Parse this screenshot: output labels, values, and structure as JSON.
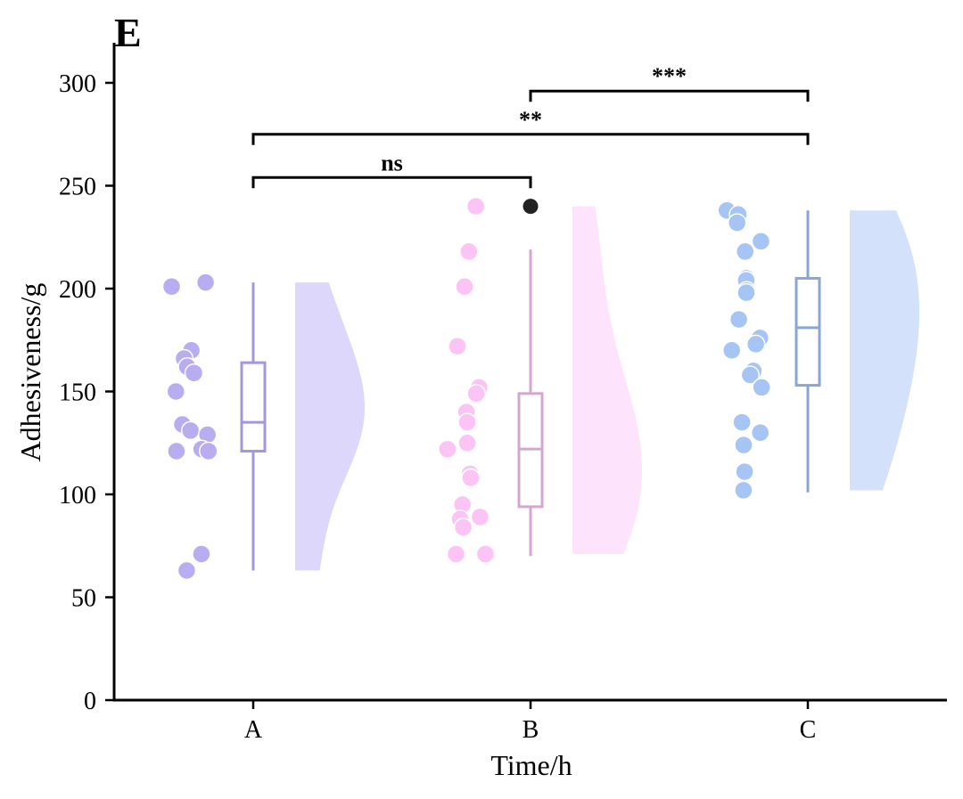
{
  "panel_label": "E",
  "chart_data": {
    "type": "raincloud",
    "xlabel": "Time/h",
    "ylabel": "Adhesiveness/g",
    "ylim": [
      0,
      320
    ],
    "yticks": [
      0,
      50,
      100,
      150,
      200,
      250,
      300
    ],
    "categories": [
      "A",
      "B",
      "C"
    ],
    "groups": [
      {
        "name": "A",
        "color": "#b9adf2",
        "box_color": "#a597d9",
        "violin_color": "#dcd7fb",
        "points": [
          203,
          201,
          170,
          166,
          162,
          159,
          150,
          134,
          131,
          129,
          122,
          121,
          121,
          71,
          63
        ],
        "box": {
          "whisker_low": 63,
          "q1": 121,
          "median": 135,
          "q3": 164,
          "whisker_high": 203
        },
        "outliers": []
      },
      {
        "name": "B",
        "color": "#fbc4f4",
        "box_color": "#d6a6d2",
        "violin_color": "#fde3fb",
        "points": [
          240,
          218,
          201,
          172,
          152,
          149,
          140,
          135,
          125,
          122,
          110,
          108,
          95,
          89,
          88,
          84,
          71,
          71
        ],
        "box": {
          "whisker_low": 70,
          "q1": 94,
          "median": 122,
          "q3": 149,
          "whisker_high": 219
        },
        "outliers": [
          240
        ]
      },
      {
        "name": "C",
        "color": "#a6c4f4",
        "box_color": "#8aa6d4",
        "violin_color": "#d3e1fb",
        "points": [
          238,
          236,
          232,
          223,
          218,
          205,
          204,
          199,
          198,
          185,
          176,
          173,
          170,
          160,
          158,
          152,
          135,
          130,
          124,
          111,
          102
        ],
        "box": {
          "whisker_low": 101,
          "q1": 153,
          "median": 181,
          "q3": 205,
          "whisker_high": 238
        },
        "outliers": []
      }
    ],
    "significance": [
      {
        "from": "A",
        "to": "B",
        "label": "ns",
        "y": 254
      },
      {
        "from": "A",
        "to": "C",
        "label": "**",
        "y": 275
      },
      {
        "from": "B",
        "to": "C",
        "label": "***",
        "y": 296
      }
    ]
  }
}
